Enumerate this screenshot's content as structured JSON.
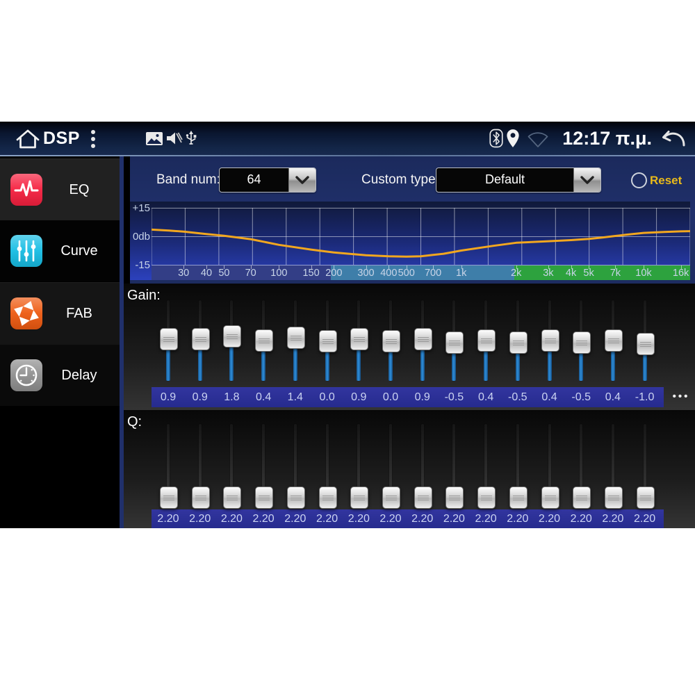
{
  "status_bar": {
    "title": "DSP",
    "time": "12:17 π.μ.",
    "icons_left": [
      "home-icon",
      "overflow-menu-icon",
      "gallery-icon",
      "volume-muted-icon",
      "usb-icon"
    ],
    "icons_right": [
      "bluetooth-icon",
      "location-icon",
      "wifi-icon",
      "back-icon"
    ]
  },
  "sidebar": {
    "items": [
      {
        "label": "EQ",
        "icon": "eq-pulse-icon",
        "color": "#f5203f",
        "selected": false
      },
      {
        "label": "Curve",
        "icon": "sliders-icon",
        "color": "#17bde4",
        "selected": true
      },
      {
        "label": "FAB",
        "icon": "fab-arrows-icon",
        "color": "#ee5a11",
        "selected": false
      },
      {
        "label": "Delay",
        "icon": "clock-icon",
        "color": "#8f8f8f",
        "selected": false
      }
    ]
  },
  "controls": {
    "band_num": {
      "label": "Band num:",
      "value": "64"
    },
    "custom_type": {
      "label": "Custom type:",
      "value": "Default"
    },
    "reset_label": "Reset"
  },
  "chart_data": {
    "type": "line",
    "x_scale": "log",
    "x_range_hz": [
      20,
      18000
    ],
    "ylim": [
      -15,
      15
    ],
    "y_tick_labels": [
      "+15",
      "0db",
      "-15"
    ],
    "x_tick_labels": [
      "30",
      "40",
      "50",
      "70",
      "100",
      "150",
      "200",
      "300",
      "400",
      "500",
      "700",
      "1k",
      "2k",
      "3k",
      "4k",
      "5k",
      "7k",
      "10k",
      "16k"
    ],
    "x_tick_hz": [
      30,
      40,
      50,
      70,
      100,
      150,
      200,
      300,
      400,
      500,
      700,
      1000,
      2000,
      3000,
      4000,
      5000,
      7000,
      10000,
      16000
    ],
    "curve_hz": [
      20,
      25,
      30,
      40,
      50,
      70,
      100,
      150,
      200,
      300,
      400,
      500,
      600,
      700,
      800,
      1000,
      1500,
      2000,
      3000,
      4000,
      5000,
      6000,
      7000,
      8000,
      10000,
      13000,
      16000,
      18000
    ],
    "curve_db": [
      3.5,
      3.0,
      2.5,
      1.2,
      0.3,
      -1.5,
      -4.5,
      -7.0,
      -8.5,
      -10.0,
      -10.5,
      -10.7,
      -10.5,
      -9.8,
      -9.2,
      -7.5,
      -5.0,
      -3.4,
      -2.6,
      -2.0,
      -1.4,
      -0.6,
      0.2,
      0.8,
      1.8,
      2.3,
      2.6,
      2.7
    ],
    "curve_color": "#f2a71f",
    "grid": true,
    "band_strip_colors": {
      "low": "#333e86",
      "mid": "#3e7ea9",
      "high": "#2da23e"
    },
    "band_strip_breaks_hz": [
      200,
      2000
    ]
  },
  "gain": {
    "label": "Gain:",
    "range": [
      -15,
      15
    ],
    "values": [
      0.9,
      0.9,
      1.8,
      0.4,
      1.4,
      0.0,
      0.9,
      0.0,
      0.9,
      -0.5,
      0.4,
      -0.5,
      0.4,
      -0.5,
      0.4,
      -1.0
    ],
    "more_label": "•••"
  },
  "q": {
    "label": "Q:",
    "range": [
      0,
      20
    ],
    "values": [
      2.2,
      2.2,
      2.2,
      2.2,
      2.2,
      2.2,
      2.2,
      2.2,
      2.2,
      2.2,
      2.2,
      2.2,
      2.2,
      2.2,
      2.2,
      2.2
    ]
  }
}
